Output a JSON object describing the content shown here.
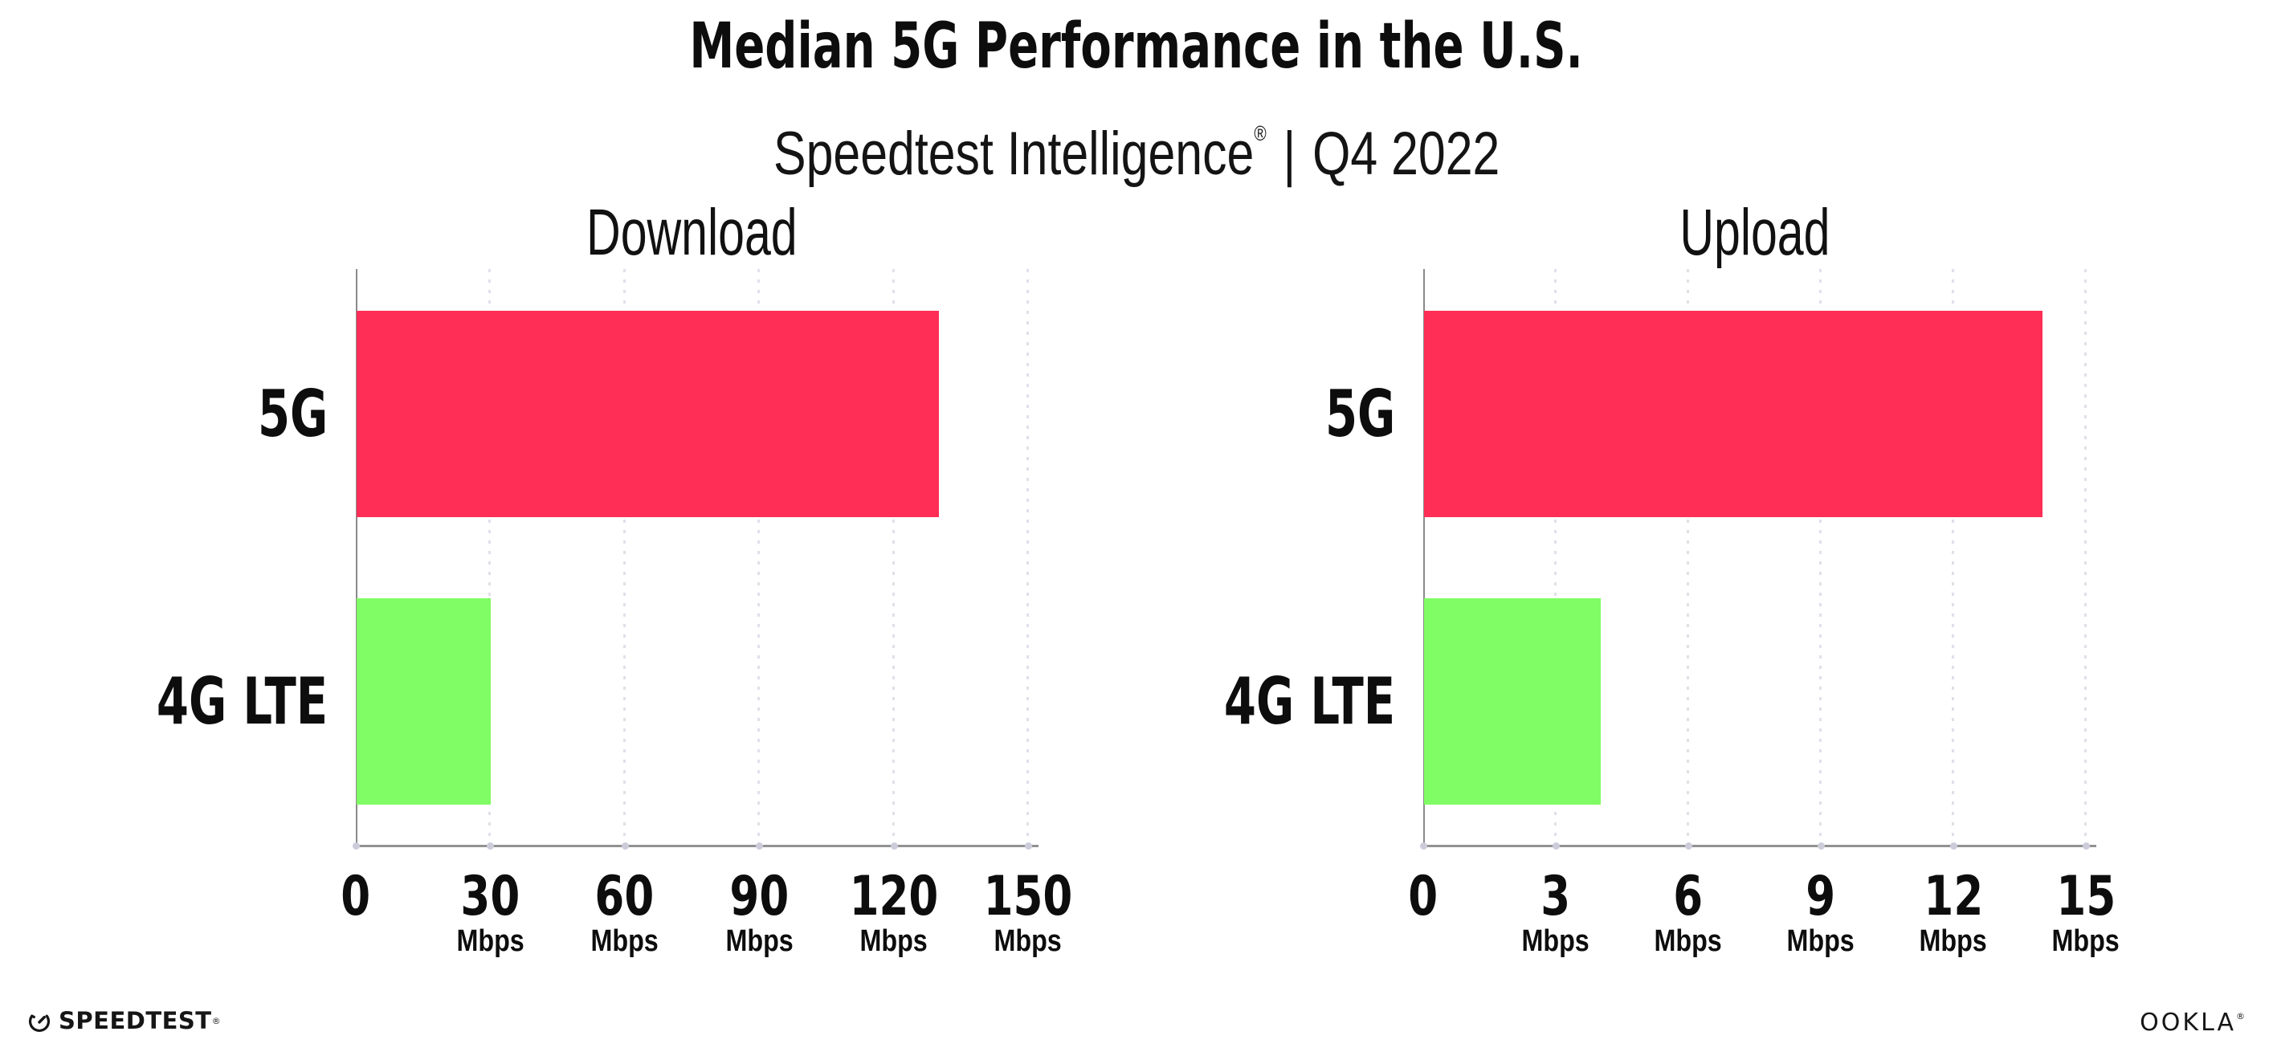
{
  "header": {
    "title": "Median 5G Performance in the U.S.",
    "subtitle_brand": "Speedtest Intelligence",
    "subtitle_reg": "®",
    "subtitle_separator": "|",
    "subtitle_period": "Q4 2022"
  },
  "chart_data": [
    {
      "type": "bar",
      "orientation": "horizontal",
      "title": "Download",
      "categories": [
        "5G",
        "4G LTE"
      ],
      "values": [
        130,
        30
      ],
      "unit": "Mbps",
      "xlim": [
        0,
        150
      ],
      "xticks": [
        0,
        30,
        60,
        90,
        120,
        150
      ],
      "bar_colors": [
        "#ff2e56",
        "#80fc64"
      ],
      "grid": "dotted-vertical-at-ticks",
      "legend": "none"
    },
    {
      "type": "bar",
      "orientation": "horizontal",
      "title": "Upload",
      "categories": [
        "5G",
        "4G LTE"
      ],
      "values": [
        14,
        4
      ],
      "unit": "Mbps",
      "xlim": [
        0,
        15
      ],
      "xticks": [
        0,
        3,
        6,
        9,
        12,
        15
      ],
      "bar_colors": [
        "#ff2e56",
        "#80fc64"
      ],
      "grid": "dotted-vertical-at-ticks",
      "legend": "none"
    }
  ],
  "footer": {
    "speedtest_label": "SPEEDTEST",
    "speedtest_reg": "®",
    "speedtest_icon": "gauge-icon",
    "ookla_label": "OOKLA",
    "ookla_reg": "®"
  },
  "colors": {
    "bar_5g": "#ff2e56",
    "bar_4g_lte": "#80fc64",
    "axis": "#8f8f8f",
    "gridline": "#e0e0ea",
    "tick_dot": "#ccccda",
    "text": "#0d0d0d"
  }
}
